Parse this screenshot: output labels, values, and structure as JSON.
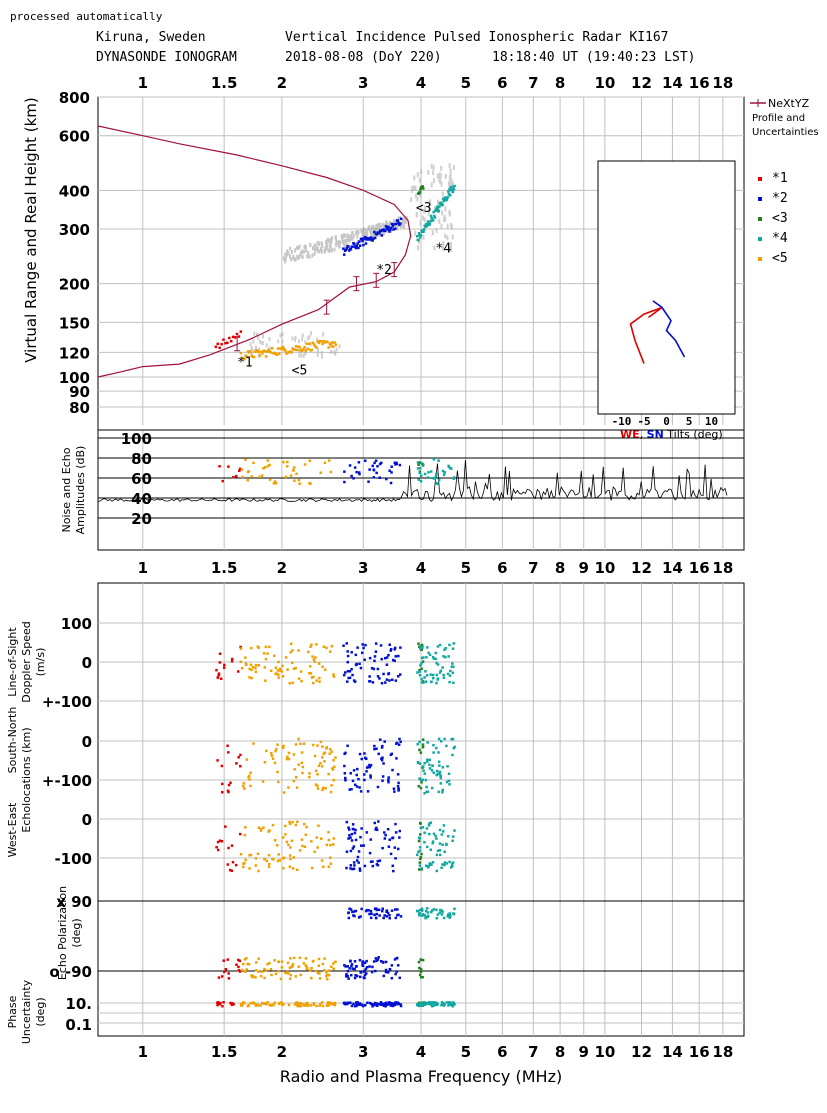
{
  "header": {
    "processed": "processed automatically",
    "line1_station": "Kiruna, Sweden",
    "line1_title": "Vertical Incidence Pulsed Ionospheric Radar KI167",
    "line2_product": "DYNASONDE IONOGRAM",
    "line2_date": "2018-08-08 (DoY 220)",
    "line2_time": "18:18:40 UT (19:40:23 LST)"
  },
  "colors": {
    "o1": "#e00000",
    "x2": "#0010d0",
    "o3": "#208020",
    "x4": "#10a8a0",
    "o5": "#f0a000",
    "profile": "#a01040",
    "grid": "#c0c0c0",
    "WE": "#e00000",
    "SN": "#0010d0"
  },
  "chart_data": {
    "type": "scatter",
    "x_label": "Radio and Plasma Frequency (MHz)",
    "x_scale": "log",
    "x_range": [
      0.8,
      20
    ],
    "x_ticks": [
      "1",
      "1.5",
      "2",
      "3",
      "4",
      "5",
      "6",
      "7",
      "8",
      "9",
      "10",
      "12",
      "14",
      "16",
      "18"
    ],
    "x_tick_values": [
      1,
      1.5,
      2,
      3,
      4,
      5,
      6,
      7,
      8,
      9,
      10,
      12,
      14,
      16,
      18
    ],
    "top_x_ticks": [
      "1",
      "1.5",
      "2",
      "3",
      "4",
      "5",
      "6",
      "7",
      "8",
      "10",
      "12",
      "14",
      "16",
      "18"
    ],
    "top_x_tick_values": [
      1,
      1.5,
      2,
      3,
      4,
      5,
      6,
      7,
      8,
      10,
      12,
      14,
      16,
      18
    ],
    "legend": {
      "entries": [
        {
          "key": "o1",
          "label": "*1"
        },
        {
          "key": "x2",
          "label": "*2"
        },
        {
          "key": "o3",
          "label": "<3"
        },
        {
          "key": "x4",
          "label": "*4"
        },
        {
          "key": "o5",
          "label": "<5"
        }
      ],
      "profile_label_1": "NeXtYZ",
      "profile_label_2": "Profile and",
      "profile_label_3": "Uncertainties"
    },
    "ionogram": {
      "y_label": "Virtual Range and Real Height (km)",
      "y_scale": "log",
      "y_range": [
        70,
        800
      ],
      "y_ticks": [
        "800",
        "600",
        "400",
        "300",
        "200",
        "150",
        "120",
        "100",
        "90",
        "80"
      ],
      "y_tick_values": [
        800,
        600,
        400,
        300,
        200,
        150,
        120,
        100,
        90,
        80
      ],
      "annotations": [
        {
          "label": "*1",
          "f": 1.6,
          "h": 108
        },
        {
          "label": "<5",
          "f": 2.1,
          "h": 102
        },
        {
          "label": "*2",
          "f": 3.2,
          "h": 215
        },
        {
          "label": "<3",
          "f": 3.9,
          "h": 340
        },
        {
          "label": "*4",
          "f": 4.3,
          "h": 252
        }
      ],
      "profile_f": [
        0.8,
        0.9,
        1.0,
        1.2,
        1.4,
        1.7,
        2.0,
        2.4,
        2.8,
        3.2,
        3.5,
        3.7,
        3.8,
        3.75,
        3.5,
        3.0,
        2.5,
        2.0,
        1.6,
        1.2,
        1.0,
        0.8
      ],
      "profile_h": [
        100,
        104,
        108,
        110,
        118,
        132,
        148,
        165,
        195,
        203,
        218,
        248,
        285,
        320,
        360,
        400,
        440,
        480,
        520,
        565,
        600,
        645
      ],
      "uncert_f": [
        1.6,
        2.5,
        2.9,
        3.2,
        3.5
      ],
      "uncert_h": [
        128,
        168,
        200,
        205,
        222
      ],
      "traces": [
        {
          "key": "o1",
          "f0": 1.43,
          "f1": 1.62,
          "h0": 125,
          "h1": 140,
          "n": 14
        },
        {
          "key": "o5",
          "f0": 1.62,
          "f1": 2.6,
          "h0": 118,
          "h1": 130,
          "n": 80
        },
        {
          "key": "x2",
          "f0": 2.7,
          "f1": 3.6,
          "h0": 255,
          "h1": 320,
          "n": 70
        },
        {
          "key": "o3",
          "f0": 3.92,
          "f1": 4.02,
          "h0": 390,
          "h1": 420,
          "n": 10
        },
        {
          "key": "x4",
          "f0": 3.9,
          "f1": 4.7,
          "h0": 280,
          "h1": 420,
          "n": 60
        }
      ]
    },
    "tilt_inset": {
      "x_ticks": [
        "-10",
        "-5",
        "0",
        "5",
        "10"
      ],
      "x_tick_values": [
        -10,
        -5,
        0,
        5,
        10
      ],
      "caption_WE": "WE",
      "caption_sep": ",",
      "caption_SN": "SN",
      "caption_rest": "Tilts (deg)",
      "WE_points": [
        [
          -4,
          -8
        ],
        [
          -1,
          -5
        ],
        [
          -5,
          -7
        ],
        [
          -8,
          -10
        ],
        [
          -7,
          -15
        ],
        [
          -5,
          -22
        ]
      ],
      "SN_points": [
        [
          -3,
          -3
        ],
        [
          -1,
          -5
        ],
        [
          1,
          -9
        ],
        [
          0,
          -12
        ],
        [
          2,
          -15
        ],
        [
          4,
          -20
        ]
      ]
    },
    "amplitude": {
      "y_label_1": "Noise and Echo",
      "y_label_2": "Amplitudes (dB)",
      "y_ticks": [
        "100",
        "80",
        "60",
        "40",
        "20"
      ],
      "y_tick_values": [
        100,
        80,
        60,
        40,
        20
      ],
      "y_range": [
        10,
        100
      ],
      "noise_floor_db": 38
    },
    "doppler": {
      "y_label_1": "Line-of-Sight",
      "y_label_2": "Doppler Speed",
      "y_label_3": "(m/s)",
      "y_ticks": [
        "100",
        "0",
        "+-100"
      ],
      "y_tick_values": [
        100,
        0,
        -100
      ]
    },
    "south_north": {
      "y_label_1": "South-North",
      "y_label_2": "Echolocations (km)",
      "y_ticks": [
        "0",
        "+-100"
      ],
      "y_tick_values": [
        0,
        -100
      ]
    },
    "west_east": {
      "y_label_1": "West-East",
      "y_ticks": [
        "0",
        "-100"
      ],
      "y_tick_values": [
        0,
        -100
      ]
    },
    "polarization": {
      "y_label_1": "Echo Polarization",
      "y_label_2": "(deg)",
      "y_ticks": [
        "x 90",
        "o -90"
      ],
      "y_tick_values": [
        90,
        -90
      ]
    },
    "phase": {
      "y_label_1": "Phase",
      "y_label_2": "Uncertainty",
      "y_label_3": "(deg)",
      "y_ticks": [
        "10.",
        "0.1"
      ],
      "y_tick_values": [
        10,
        0.1
      ]
    }
  }
}
